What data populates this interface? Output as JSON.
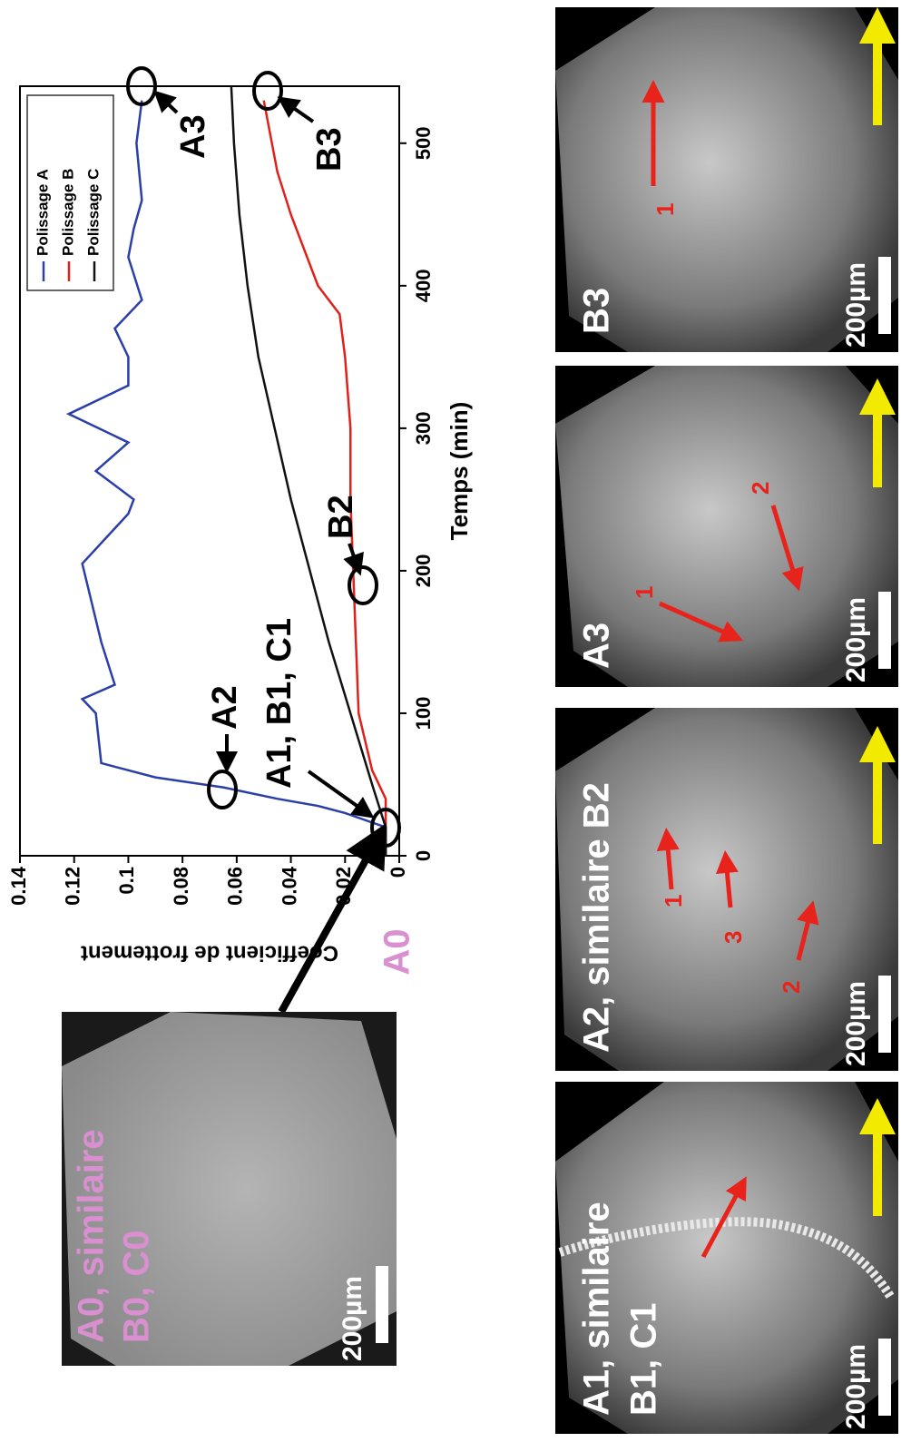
{
  "chart_data": {
    "type": "line",
    "ylabel": "Coefficient de frottement",
    "xlabel": "Temps (min)",
    "xlim": [
      0,
      540
    ],
    "xticks": [
      0,
      100,
      200,
      300,
      400,
      500
    ],
    "ylim": [
      0,
      0.14
    ],
    "yticks": [
      0,
      0.02,
      0.04,
      0.06,
      0.08,
      0.1,
      0.12,
      0.14
    ],
    "legend": "upper right",
    "series": [
      {
        "name": "Polissage A",
        "color": "#2b3fa8",
        "x": [
          0,
          20,
          30,
          35,
          40,
          48,
          55,
          65,
          100,
          110,
          120,
          150,
          205,
          240,
          250,
          270,
          290,
          310,
          330,
          350,
          370,
          390,
          420,
          440,
          460,
          500,
          530
        ],
        "values": [
          0.005,
          0.005,
          0.02,
          0.03,
          0.045,
          0.065,
          0.09,
          0.11,
          0.112,
          0.117,
          0.105,
          0.11,
          0.117,
          0.1,
          0.098,
          0.112,
          0.1,
          0.122,
          0.1,
          0.1,
          0.105,
          0.095,
          0.1,
          0.098,
          0.095,
          0.097,
          0.095
        ]
      },
      {
        "name": "Polissage B",
        "color": "#e0201b",
        "x": [
          0,
          20,
          40,
          60,
          100,
          150,
          200,
          250,
          300,
          350,
          380,
          400,
          450,
          480,
          530
        ],
        "values": [
          0.005,
          0.005,
          0.005,
          0.01,
          0.015,
          0.016,
          0.017,
          0.018,
          0.018,
          0.02,
          0.022,
          0.03,
          0.04,
          0.045,
          0.05
        ]
      },
      {
        "name": "Polissage C",
        "color": "#111111",
        "x": [
          0,
          20,
          50,
          100,
          150,
          200,
          250,
          300,
          350,
          400,
          450,
          500,
          540
        ],
        "values": [
          0.005,
          0.005,
          0.01,
          0.018,
          0.026,
          0.033,
          0.04,
          0.046,
          0.052,
          0.056,
          0.059,
          0.061,
          0.062
        ]
      }
    ],
    "annotations": [
      "A0",
      "A1, B1, C1",
      "A2",
      "A3",
      "B2",
      "B3"
    ]
  },
  "images": [
    {
      "labels": [
        "A0, similaire",
        "B0, C0"
      ],
      "scale": "200µm"
    },
    {
      "labels": [
        "A1, similaire",
        "B1, C1"
      ],
      "scale": "200µm"
    },
    {
      "labels": [
        "A2, similaire B2"
      ],
      "scale": "200µm",
      "numbers": [
        "1",
        "3",
        "2"
      ]
    },
    {
      "labels": [
        "A3"
      ],
      "scale": "200µm",
      "numbers": [
        "1",
        "2"
      ]
    },
    {
      "labels": [
        "B3"
      ],
      "scale": "200µm",
      "numbers": [
        "1"
      ]
    }
  ]
}
